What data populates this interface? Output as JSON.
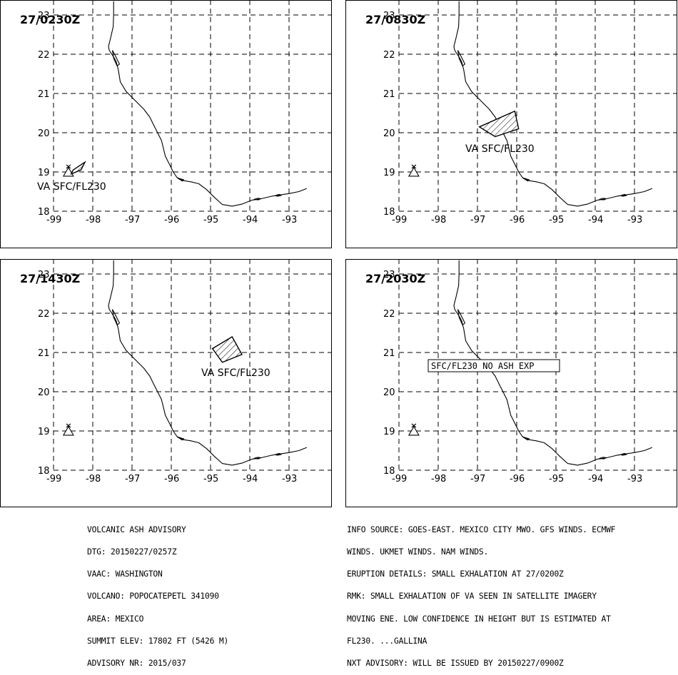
{
  "map": {
    "lon_ticks": [
      -99,
      -98,
      -97,
      -96,
      -95,
      -94,
      -93
    ],
    "lat_ticks": [
      18,
      19,
      20,
      21,
      22,
      23
    ],
    "lon_range": [
      -99.3,
      -92.5
    ],
    "lat_range": [
      17.7,
      23.3
    ],
    "grid": true
  },
  "panels": [
    {
      "id": "p1",
      "title": "27/0230Z",
      "ash_label": "VA SFC/FL230",
      "ash_polygon": [
        [
          -98.5,
          19.05
        ],
        [
          -98.2,
          19.25
        ],
        [
          -98.3,
          19.05
        ],
        [
          -98.55,
          18.95
        ]
      ],
      "no_ash_text": ""
    },
    {
      "id": "p2",
      "title": "27/0830Z",
      "ash_label": "VA SFC/FL230",
      "ash_polygon": [
        [
          -96.95,
          20.15
        ],
        [
          -96.05,
          20.55
        ],
        [
          -95.95,
          20.1
        ],
        [
          -96.55,
          19.9
        ]
      ],
      "no_ash_text": ""
    },
    {
      "id": "p3",
      "title": "27/1430Z",
      "ash_label": "VA SFC/FL230",
      "ash_polygon": [
        [
          -94.95,
          21.1
        ],
        [
          -94.45,
          21.4
        ],
        [
          -94.2,
          20.95
        ],
        [
          -94.7,
          20.75
        ]
      ],
      "no_ash_text": ""
    },
    {
      "id": "p4",
      "title": "27/2030Z",
      "ash_label": "",
      "ash_polygon": [],
      "no_ash_text": "SFC/FL230 NO ASH EXP"
    }
  ],
  "volcano": {
    "name": "POPOCATEPETL",
    "lon": -98.62,
    "lat": 19.02
  },
  "advisory_left": [
    "VOLCANIC ASH ADVISORY",
    "DTG: 20150227/0257Z",
    "VAAC: WASHINGTON",
    "VOLCANO: POPOCATEPETL 341090",
    "AREA: MEXICO",
    "SUMMIT ELEV: 17802 FT (5426 M)",
    "ADVISORY NR: 2015/037"
  ],
  "advisory_right": [
    "INFO SOURCE: GOES-EAST. MEXICO CITY MWO. GFS WINDS. ECMWF",
    "WINDS. UKMET WINDS. NAM WINDS.",
    "ERUPTION DETAILS: SMALL EXHALATION AT 27/0200Z",
    "RMK: SMALL EXHALATION OF VA SEEN IN SATELLITE IMAGERY",
    "MOVING ENE. LOW CONFIDENCE IN HEIGHT BUT IS ESTIMATED AT",
    "FL230. ...GALLINA",
    "NXT ADVISORY: WILL BE ISSUED BY 20150227/0900Z"
  ]
}
